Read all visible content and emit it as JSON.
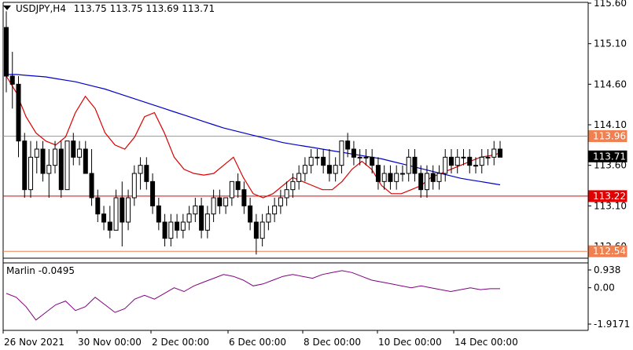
{
  "header": {
    "symbol": "USDJPY,H4",
    "ohlc": "113.75 113.75 113.69 113.71"
  },
  "indicator": {
    "label": "Marlin -0.0495",
    "axis_labels": [
      "0.938",
      "0.00",
      "-1.9171"
    ],
    "color": "#800080"
  },
  "colors": {
    "level_red": "#e00000",
    "level_orange": "#f08050",
    "ma_blue": "#0000c8",
    "ma_red": "#dc0000",
    "candle": "#000000"
  },
  "chart_data": {
    "type": "candlestick",
    "symbol": "USDJPY",
    "timeframe": "H4",
    "ylim": [
      112.54,
      115.6
    ],
    "y_ticks": [
      "115.60",
      "115.10",
      "114.60",
      "114.10",
      "113.60",
      "113.10",
      "112.60"
    ],
    "x_ticks": [
      "26 Nov 2021",
      "30 Nov 00:00",
      "2 Dec 00:00",
      "6 Dec 00:00",
      "8 Dec 00:00",
      "10 Dec 00:00",
      "14 Dec 00:00"
    ],
    "price_labels": [
      {
        "value": "113.96",
        "style": "orange"
      },
      {
        "value": "113.71",
        "style": "current"
      },
      {
        "value": "113.22",
        "style": "red"
      },
      {
        "value": "112.54",
        "style": "orange"
      }
    ],
    "levels": [
      {
        "value": 113.96,
        "color": "orange"
      },
      {
        "value": 113.22,
        "color": "red"
      },
      {
        "value": 112.54,
        "color": "orange"
      }
    ],
    "candles_approx": [
      [
        115.3,
        115.5,
        114.5,
        114.7
      ],
      [
        114.7,
        115.0,
        114.3,
        114.6
      ],
      [
        114.6,
        114.7,
        113.7,
        113.9
      ],
      [
        113.9,
        114.0,
        113.2,
        113.3
      ],
      [
        113.3,
        113.9,
        113.2,
        113.7
      ],
      [
        113.7,
        113.9,
        113.5,
        113.8
      ],
      [
        113.8,
        113.9,
        113.4,
        113.5
      ],
      [
        113.5,
        113.8,
        113.2,
        113.6
      ],
      [
        113.6,
        113.9,
        113.5,
        113.8
      ],
      [
        113.8,
        113.9,
        113.2,
        113.3
      ],
      [
        113.3,
        113.9,
        113.3,
        113.9
      ],
      [
        113.9,
        114.0,
        113.6,
        113.7
      ],
      [
        113.7,
        113.9,
        113.6,
        113.8
      ],
      [
        113.8,
        113.9,
        113.5,
        113.5
      ],
      [
        113.5,
        113.8,
        113.1,
        113.2
      ],
      [
        113.2,
        113.3,
        112.9,
        113.0
      ],
      [
        113.0,
        113.1,
        112.8,
        112.9
      ],
      [
        112.9,
        113.1,
        112.7,
        112.8
      ],
      [
        112.8,
        113.3,
        112.8,
        113.2
      ],
      [
        113.2,
        113.4,
        112.6,
        112.9
      ],
      [
        112.9,
        113.3,
        112.8,
        113.2
      ],
      [
        113.2,
        113.6,
        113.1,
        113.5
      ],
      [
        113.5,
        113.7,
        113.3,
        113.6
      ],
      [
        113.6,
        113.7,
        113.3,
        113.4
      ],
      [
        113.4,
        113.5,
        113.0,
        113.1
      ],
      [
        113.1,
        113.2,
        112.8,
        112.9
      ],
      [
        112.9,
        113.0,
        112.6,
        112.7
      ],
      [
        112.7,
        113.0,
        112.6,
        112.9
      ],
      [
        112.9,
        113.0,
        112.7,
        112.8
      ],
      [
        112.8,
        113.0,
        112.7,
        112.9
      ],
      [
        112.9,
        113.1,
        112.8,
        113.0
      ],
      [
        113.0,
        113.2,
        112.9,
        113.1
      ],
      [
        113.1,
        113.2,
        112.7,
        112.8
      ],
      [
        112.8,
        113.1,
        112.7,
        113.0
      ],
      [
        113.0,
        113.3,
        112.9,
        113.2
      ],
      [
        113.2,
        113.3,
        113.0,
        113.1
      ],
      [
        113.1,
        113.2,
        113.0,
        113.2
      ],
      [
        113.2,
        113.4,
        113.1,
        113.4
      ],
      [
        113.4,
        113.5,
        113.2,
        113.3
      ],
      [
        113.3,
        113.4,
        113.0,
        113.1
      ],
      [
        113.1,
        113.2,
        112.8,
        112.9
      ],
      [
        112.9,
        113.0,
        112.5,
        112.7
      ],
      [
        112.7,
        113.0,
        112.6,
        112.9
      ],
      [
        112.9,
        113.1,
        112.8,
        113.0
      ],
      [
        113.0,
        113.2,
        112.9,
        113.1
      ],
      [
        113.1,
        113.3,
        113.0,
        113.2
      ],
      [
        113.2,
        113.4,
        113.1,
        113.3
      ],
      [
        113.3,
        113.5,
        113.2,
        113.4
      ],
      [
        113.4,
        113.6,
        113.3,
        113.5
      ],
      [
        113.5,
        113.7,
        113.4,
        113.6
      ],
      [
        113.6,
        113.8,
        113.5,
        113.7
      ],
      [
        113.7,
        113.8,
        113.6,
        113.7
      ],
      [
        113.7,
        113.8,
        113.5,
        113.6
      ],
      [
        113.6,
        113.8,
        113.4,
        113.5
      ],
      [
        113.5,
        113.7,
        113.4,
        113.6
      ],
      [
        113.6,
        113.9,
        113.5,
        113.9
      ],
      [
        113.9,
        114.0,
        113.7,
        113.8
      ],
      [
        113.8,
        113.9,
        113.6,
        113.7
      ],
      [
        113.7,
        113.8,
        113.6,
        113.7
      ],
      [
        113.7,
        113.8,
        113.6,
        113.7
      ],
      [
        113.7,
        113.8,
        113.5,
        113.6
      ],
      [
        113.6,
        113.7,
        113.3,
        113.4
      ],
      [
        113.4,
        113.6,
        113.3,
        113.5
      ],
      [
        113.5,
        113.6,
        113.3,
        113.4
      ],
      [
        113.4,
        113.6,
        113.3,
        113.5
      ],
      [
        113.5,
        113.6,
        113.4,
        113.5
      ],
      [
        113.5,
        113.8,
        113.4,
        113.7
      ],
      [
        113.7,
        113.8,
        113.4,
        113.5
      ],
      [
        113.5,
        113.6,
        113.2,
        113.3
      ],
      [
        113.3,
        113.6,
        113.2,
        113.5
      ],
      [
        113.5,
        113.6,
        113.3,
        113.4
      ],
      [
        113.4,
        113.6,
        113.3,
        113.5
      ],
      [
        113.5,
        113.8,
        113.4,
        113.7
      ],
      [
        113.7,
        113.8,
        113.5,
        113.6
      ],
      [
        113.6,
        113.8,
        113.5,
        113.7
      ],
      [
        113.7,
        113.8,
        113.6,
        113.7
      ],
      [
        113.7,
        113.8,
        113.5,
        113.6
      ],
      [
        113.6,
        113.7,
        113.5,
        113.6
      ],
      [
        113.6,
        113.8,
        113.5,
        113.7
      ],
      [
        113.7,
        113.8,
        113.6,
        113.7
      ],
      [
        113.7,
        113.9,
        113.6,
        113.8
      ],
      [
        113.8,
        113.9,
        113.7,
        113.7
      ]
    ],
    "ma_blue_approx": [
      114.72,
      114.72,
      114.71,
      114.7,
      114.69,
      114.67,
      114.65,
      114.63,
      114.6,
      114.57,
      114.54,
      114.5,
      114.46,
      114.42,
      114.38,
      114.34,
      114.3,
      114.26,
      114.22,
      114.18,
      114.14,
      114.1,
      114.06,
      114.03,
      114.0,
      113.97,
      113.94,
      113.91,
      113.88,
      113.86,
      113.84,
      113.82,
      113.8,
      113.78,
      113.76,
      113.74,
      113.72,
      113.7,
      113.68,
      113.65,
      113.62,
      113.59,
      113.56,
      113.53,
      113.5,
      113.47,
      113.44,
      113.42,
      113.4,
      113.38,
      113.36
    ],
    "ma_red_approx": [
      114.7,
      114.5,
      114.2,
      114.0,
      113.9,
      113.85,
      113.95,
      114.25,
      114.45,
      114.3,
      114.0,
      113.85,
      113.8,
      113.95,
      114.2,
      114.25,
      114.0,
      113.7,
      113.55,
      113.5,
      113.48,
      113.5,
      113.6,
      113.7,
      113.45,
      113.25,
      113.2,
      113.25,
      113.35,
      113.45,
      113.4,
      113.35,
      113.3,
      113.3,
      113.4,
      113.55,
      113.65,
      113.55,
      113.35,
      113.25,
      113.25,
      113.3,
      113.35,
      113.45,
      113.5,
      113.55,
      113.6,
      113.65,
      113.7,
      113.72,
      113.75
    ]
  },
  "marlin_data_approx": [
    -0.3,
    -0.5,
    -1.0,
    -1.7,
    -1.3,
    -0.9,
    -0.7,
    -1.2,
    -1.0,
    -0.5,
    -0.9,
    -1.3,
    -1.1,
    -0.6,
    -0.4,
    -0.6,
    -0.3,
    0.0,
    -0.2,
    0.1,
    0.3,
    0.5,
    0.7,
    0.6,
    0.4,
    0.1,
    0.2,
    0.4,
    0.6,
    0.7,
    0.6,
    0.5,
    0.7,
    0.8,
    0.9,
    0.8,
    0.6,
    0.4,
    0.3,
    0.2,
    0.1,
    0.0,
    0.1,
    0.0,
    -0.1,
    -0.2,
    -0.1,
    0.0,
    -0.1,
    -0.05,
    -0.05
  ]
}
